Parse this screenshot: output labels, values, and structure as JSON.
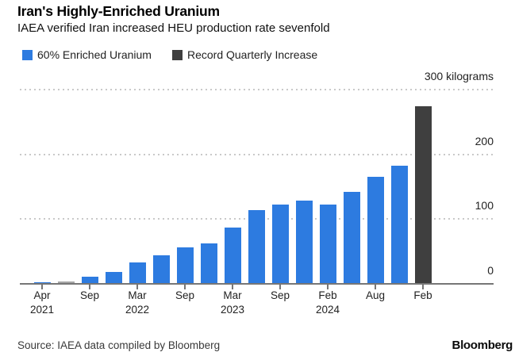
{
  "header": {
    "title": "Iran's Highly-Enriched Uranium",
    "subtitle": "IAEA verified Iran increased HEU production rate sevenfold"
  },
  "legend": {
    "items": [
      {
        "label": "60% Enriched Uranium",
        "color": "#2d7be0"
      },
      {
        "label": "Record Quarterly Increase",
        "color": "#3f3f3f"
      }
    ]
  },
  "footer": {
    "source": "Source: IAEA data compiled by Bloomberg",
    "brand": "Bloomberg"
  },
  "chart_data": {
    "type": "bar",
    "title": "Iran's Highly-Enriched Uranium",
    "subtitle": "IAEA verified Iran increased HEU production rate sevenfold",
    "ylabel": "kilograms",
    "unit_top_label": "300 kilograms",
    "ylim": [
      0,
      300
    ],
    "yticks": [
      0,
      100,
      200,
      300
    ],
    "grid": "horizontal-dotted",
    "legend_position": "top-left",
    "colors": {
      "blue": "#2d7be0",
      "gray": "#a6a6a6",
      "dark": "#3f3f3f"
    },
    "axis_color": "#767676",
    "grid_color": "#c9c9c9",
    "bars": [
      {
        "value": 2,
        "series": "blue"
      },
      {
        "value": 3,
        "series": "gray"
      },
      {
        "value": 10,
        "series": "blue"
      },
      {
        "value": 18,
        "series": "blue"
      },
      {
        "value": 33,
        "series": "blue"
      },
      {
        "value": 43,
        "series": "blue"
      },
      {
        "value": 56,
        "series": "blue"
      },
      {
        "value": 62,
        "series": "blue"
      },
      {
        "value": 87,
        "series": "blue"
      },
      {
        "value": 114,
        "series": "blue"
      },
      {
        "value": 122,
        "series": "blue"
      },
      {
        "value": 128,
        "series": "blue"
      },
      {
        "value": 122,
        "series": "blue"
      },
      {
        "value": 142,
        "series": "blue"
      },
      {
        "value": 165,
        "series": "blue"
      },
      {
        "value": 182,
        "series": "blue"
      },
      {
        "value": 274,
        "series": "dark"
      }
    ],
    "x_ticks": [
      {
        "bar_index": 0,
        "line1": "Apr",
        "line2": "2021"
      },
      {
        "bar_index": 2,
        "line1": "Sep"
      },
      {
        "bar_index": 4,
        "line1": "Mar",
        "line2": "2022"
      },
      {
        "bar_index": 6,
        "line1": "Sep"
      },
      {
        "bar_index": 8,
        "line1": "Mar",
        "line2": "2023"
      },
      {
        "bar_index": 10,
        "line1": "Sep"
      },
      {
        "bar_index": 12,
        "line1": "Feb",
        "line2": "2024"
      },
      {
        "bar_index": 14,
        "line1": "Aug"
      },
      {
        "bar_index": 16,
        "line1": "Feb"
      }
    ]
  }
}
